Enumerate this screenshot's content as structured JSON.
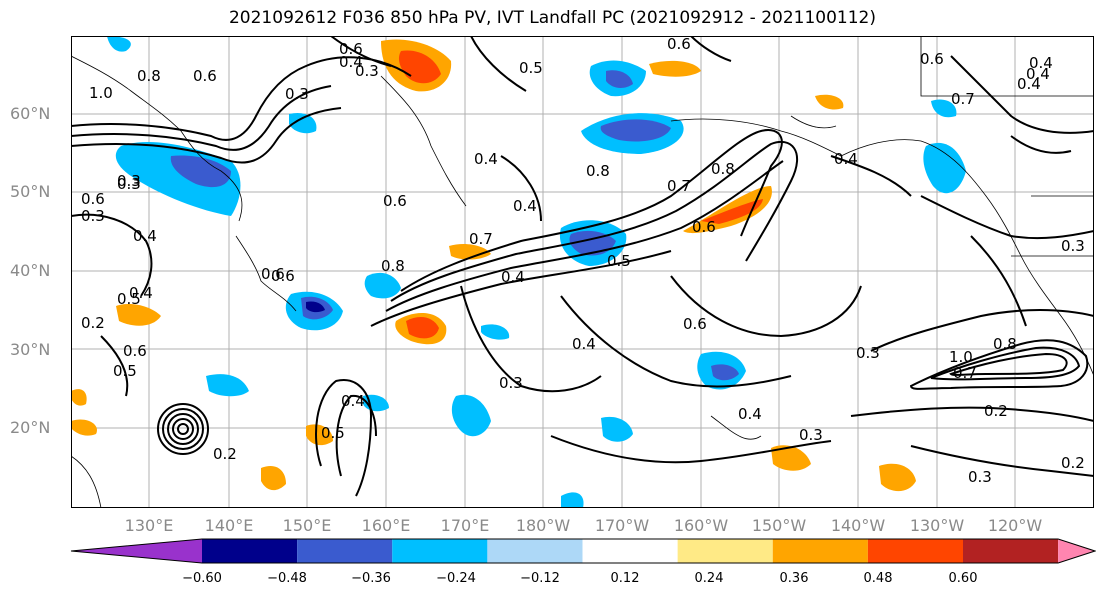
{
  "title": "2021092612 F036 850 hPa PV, IVT Landfall PC (2021092912 - 2021100112)",
  "latitude_labels": [
    "60°N",
    "50°N",
    "40°N",
    "30°N",
    "20°N"
  ],
  "longitude_labels": [
    "130°E",
    "140°E",
    "150°E",
    "160°E",
    "170°E",
    "180°W",
    "170°W",
    "160°W",
    "150°W",
    "140°W",
    "130°W",
    "120°W"
  ],
  "colorbar": {
    "colors": [
      "#9932cc",
      "#00008b",
      "#3a5bcf",
      "#00bfff",
      "#add8f7",
      "#ffffff",
      "#ffea86",
      "#ffa500",
      "#ff4500",
      "#b22222",
      "#ff85b0"
    ],
    "tick_labels": [
      "−0.60",
      "−0.48",
      "−0.36",
      "−0.24",
      "−0.12",
      "0.12",
      "0.24",
      "0.36",
      "0.48",
      "0.60"
    ]
  },
  "contour_labels": [
    "0.6",
    "0.4",
    "0.3",
    "0.5",
    "0.6",
    "0.6",
    "0.4",
    "0.7",
    "0.4",
    "1.0",
    "0.8",
    "0.6",
    "0.3",
    "0.3",
    "0.4",
    "0.7",
    "0.8",
    "0.7",
    "0.6",
    "0.4",
    "0.8",
    "0.4",
    "0.6",
    "0.5",
    "0.8",
    "0.4",
    "0.6",
    "0.5",
    "0.4",
    "0.3",
    "0.6",
    "0.3",
    "0.2",
    "0.6",
    "0.4",
    "0.6",
    "0.4",
    "0.5",
    "0.5",
    "0.6",
    "0.4",
    "0.3",
    "0.8",
    "1.0",
    "0.7",
    "0.2",
    "0.4",
    "0.3",
    "0.3",
    "0.2",
    "0.3",
    "0.4",
    "0.3",
    "0.2"
  ]
}
